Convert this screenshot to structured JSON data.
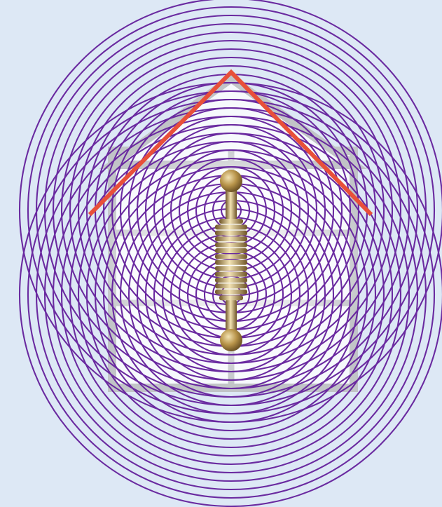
{
  "colors": {
    "background": "#dde8f5",
    "wave": "#6a2aa0",
    "roof": "#e8503a",
    "house_frame": "#b8b8b8",
    "house_fill": "#ffffff",
    "antenna_metal": "#b8944a",
    "antenna_highlight": "#f3e3b4",
    "antenna_shadow": "#6e5426"
  },
  "icons": {
    "house": "house-icon",
    "antenna": "dipole-antenna-icon",
    "waves": "concentric-wave-rings"
  }
}
